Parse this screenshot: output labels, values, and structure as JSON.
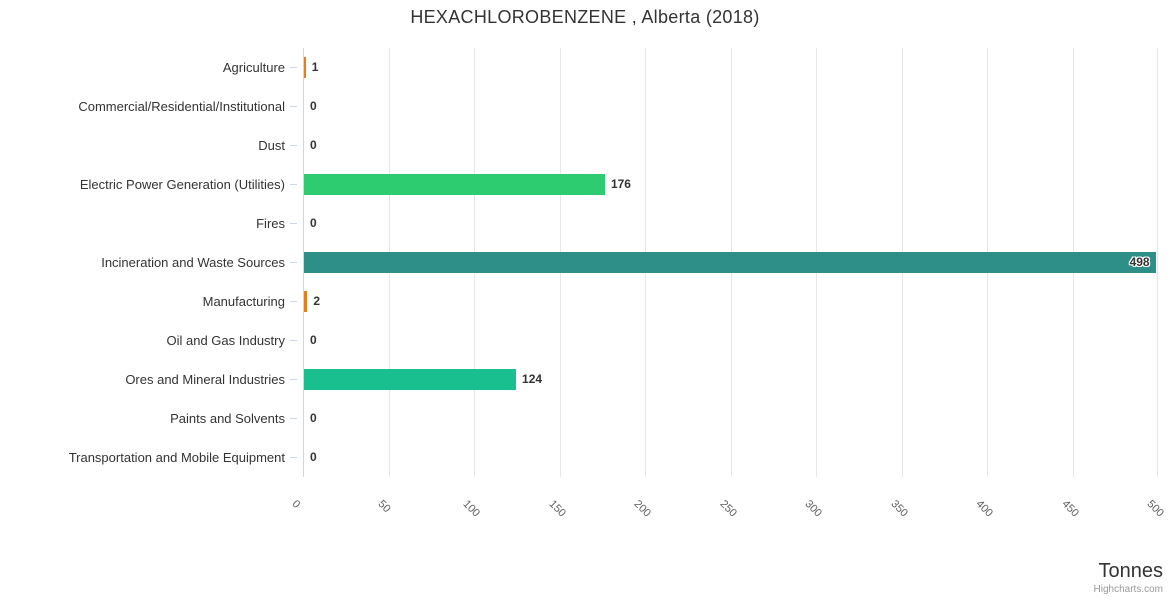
{
  "header": {
    "title": "HEXACHLOROBENZENE , Alberta (2018)"
  },
  "chart_data": {
    "type": "bar",
    "orientation": "horizontal",
    "title": "HEXACHLOROBENZENE , Alberta (2018)",
    "categories": [
      "Agriculture",
      "Commercial/Residential/Institutional",
      "Dust",
      "Electric Power Generation (Utilities)",
      "Fires",
      "Incineration and Waste Sources",
      "Manufacturing",
      "Oil and Gas Industry",
      "Ores and Mineral Industries",
      "Paints and Solvents",
      "Transportation and Mobile Equipment"
    ],
    "values": [
      1,
      0,
      0,
      176,
      0,
      498,
      2,
      0,
      124,
      0,
      0
    ],
    "bar_colors": [
      "#e87d1e",
      null,
      null,
      "#2ecc71",
      null,
      "#2e8f88",
      "#e87d1e",
      null,
      "#1abf90",
      null,
      null
    ],
    "value_axis": {
      "title": "Tonnes",
      "min": 0,
      "max": 500,
      "ticks": [
        0,
        50,
        100,
        150,
        200,
        250,
        300,
        350,
        400,
        450,
        500
      ]
    },
    "grid": true,
    "legend": false
  },
  "credit": {
    "label": "Highcharts.com"
  },
  "colors": {
    "background": "#ffffff",
    "axis_line": "#ccd6eb",
    "gridline": "#e6e6e6",
    "category_label": "#333333",
    "tick_label": "#606060",
    "data_label": "#333333",
    "axis_title": "#333333",
    "credit": "#999999"
  }
}
